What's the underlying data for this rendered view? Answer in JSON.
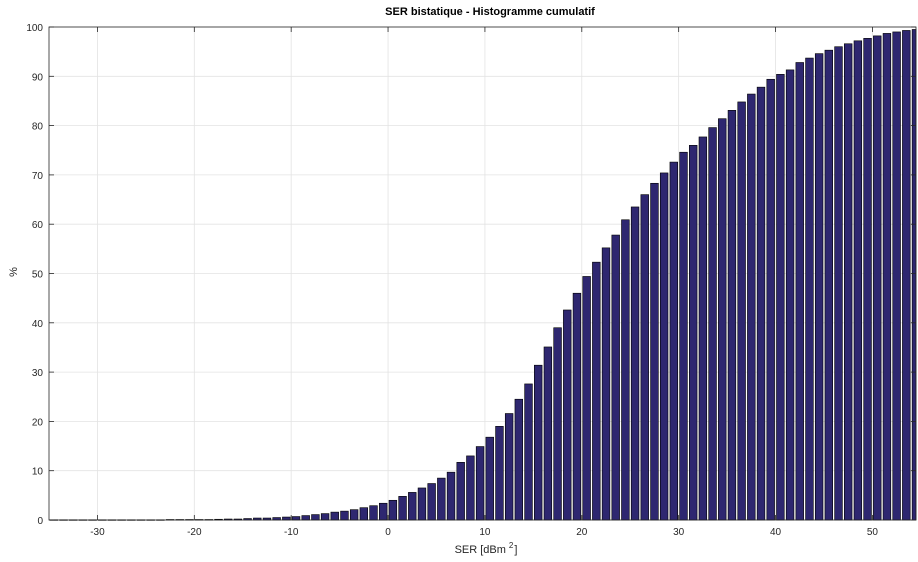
{
  "chart_data": {
    "type": "bar",
    "title": "SER bistatique - Histogramme cumulatif",
    "xlabel": "SER [dBm",
    "xlabel_superscript": "2",
    "ylabel": "%",
    "xlim": [
      -35,
      54.5
    ],
    "ylim": [
      0,
      100
    ],
    "xticks": [
      -30,
      -20,
      -10,
      0,
      10,
      20,
      30,
      40,
      50
    ],
    "yticks": [
      0,
      10,
      20,
      30,
      40,
      50,
      60,
      70,
      80,
      90,
      100
    ],
    "grid": true,
    "bar_color": "#2e2770",
    "bar_edge_color": "#000000",
    "x_start": -34.5,
    "x_step": 1,
    "values": [
      0.05,
      0.05,
      0.05,
      0.05,
      0.05,
      0.05,
      0.05,
      0.05,
      0.05,
      0.05,
      0.05,
      0.05,
      0.1,
      0.1,
      0.1,
      0.1,
      0.1,
      0.15,
      0.2,
      0.2,
      0.3,
      0.4,
      0.4,
      0.5,
      0.6,
      0.7,
      0.9,
      1.1,
      1.3,
      1.6,
      1.8,
      2.1,
      2.5,
      2.9,
      3.4,
      4.0,
      4.8,
      5.6,
      6.5,
      7.4,
      8.5,
      9.7,
      11.7,
      13.0,
      14.9,
      16.8,
      19.0,
      21.6,
      24.5,
      27.6,
      31.4,
      35.1,
      39.0,
      42.6,
      46.0,
      49.4,
      52.3,
      55.2,
      57.8,
      60.9,
      63.5,
      66.0,
      68.3,
      70.4,
      72.6,
      74.6,
      76.0,
      77.7,
      79.6,
      81.4,
      83.1,
      84.8,
      86.4,
      87.8,
      89.4,
      90.4,
      91.3,
      92.8,
      93.7,
      94.6,
      95.3,
      96.0,
      96.6,
      97.2,
      97.7,
      98.2,
      98.7,
      99.0,
      99.3,
      99.5,
      99.6,
      99.8,
      99.9,
      99.9,
      99.95,
      100,
      100,
      100,
      100,
      100
    ]
  }
}
